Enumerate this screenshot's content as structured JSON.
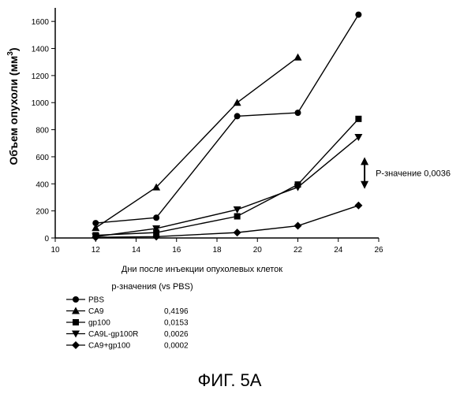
{
  "chart_data": {
    "type": "line",
    "xlabel": "Дни после инъекции опухолевых клеток",
    "ylabel": "Объем опухоли (мм",
    "ylabel_sup": "3",
    "ylabel_tail": ")",
    "xlim": [
      10,
      26
    ],
    "ylim": [
      0,
      1700
    ],
    "x_ticks": [
      10,
      12,
      14,
      16,
      18,
      20,
      22,
      24,
      26
    ],
    "y_ticks": [
      0,
      200,
      400,
      600,
      800,
      1000,
      1200,
      1400,
      1600
    ],
    "grid": false,
    "series": [
      {
        "name": "PBS",
        "marker": "circle",
        "x": [
          12,
          15,
          19,
          22,
          25
        ],
        "y": [
          110,
          150,
          900,
          925,
          1650
        ]
      },
      {
        "name": "CA9",
        "marker": "triangle-up",
        "x": [
          12,
          15,
          19,
          22
        ],
        "y": [
          75,
          375,
          1000,
          1335
        ]
      },
      {
        "name": "gp100",
        "marker": "square",
        "x": [
          12,
          15,
          19,
          22,
          25
        ],
        "y": [
          20,
          40,
          160,
          395,
          880
        ]
      },
      {
        "name": "CA9L-gp100R",
        "marker": "triangle-down",
        "x": [
          12,
          15,
          19,
          22,
          25
        ],
        "y": [
          10,
          70,
          210,
          375,
          745
        ]
      },
      {
        "name": "CA9+gp100",
        "marker": "diamond",
        "x": [
          12,
          15,
          19,
          22,
          25
        ],
        "y": [
          5,
          10,
          40,
          90,
          240
        ]
      }
    ],
    "annotation": {
      "text": "Р-значение  0,0036",
      "y_from": 580,
      "y_to": 380,
      "x": 25.3
    }
  },
  "legend": {
    "header": "р-значения (vs PBS)",
    "rows": [
      {
        "series": "PBS",
        "label": "PBS",
        "pvalue": ""
      },
      {
        "series": "CA9",
        "label": "CA9",
        "pvalue": "0,4196"
      },
      {
        "series": "gp100",
        "label": "gp100",
        "pvalue": "0,0153"
      },
      {
        "series": "CA9L-gp100R",
        "label": "CA9L-gp100R",
        "pvalue": "0,0026"
      },
      {
        "series": "CA9+gp100",
        "label": "CA9+gp100",
        "pvalue": "0,0002"
      }
    ]
  },
  "caption": "ФИГ. 5А"
}
